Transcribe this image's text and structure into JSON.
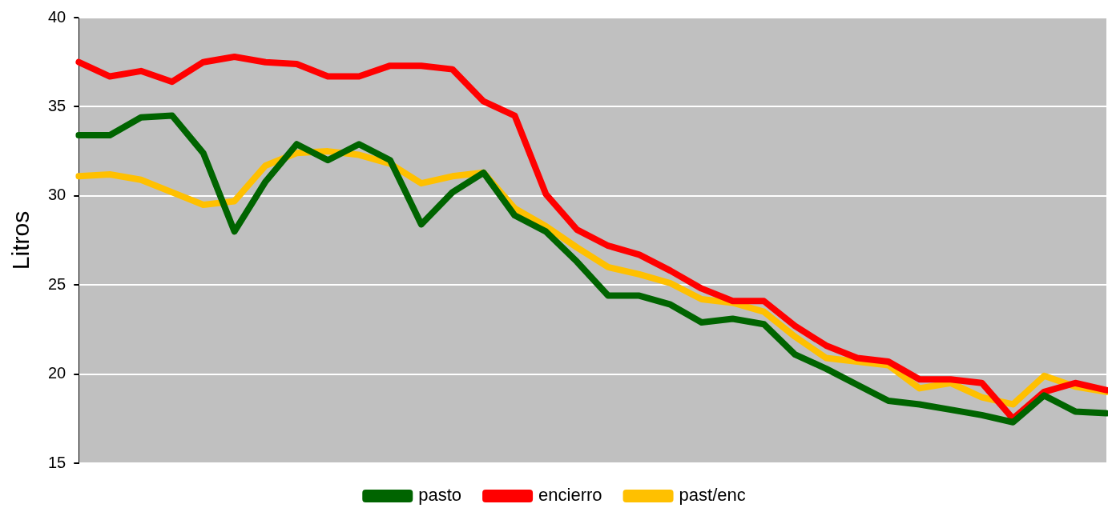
{
  "chart_data": {
    "type": "line",
    "ylabel": "Litros",
    "categories": [
      null,
      null,
      null,
      null,
      null,
      null,
      null,
      null,
      null,
      null,
      null,
      null,
      null,
      null,
      null,
      null,
      null,
      null,
      null,
      null,
      null,
      null,
      null,
      null,
      null,
      null,
      null,
      null,
      null,
      null,
      null,
      null,
      null,
      null
    ],
    "series": [
      {
        "name": "pasto",
        "color": "#006400",
        "values": [
          33.4,
          33.4,
          34.4,
          34.5,
          32.4,
          28.0,
          30.8,
          32.9,
          32.0,
          32.9,
          32.0,
          28.4,
          30.2,
          31.3,
          28.9,
          28.0,
          26.3,
          24.4,
          24.4,
          23.9,
          22.9,
          23.1,
          22.8,
          21.1,
          20.3,
          19.4,
          18.5,
          18.3,
          18.0,
          17.7,
          17.3,
          18.8,
          17.9,
          17.8
        ]
      },
      {
        "name": "encierro",
        "color": "#ff0000",
        "values": [
          37.5,
          36.7,
          37.0,
          36.4,
          37.5,
          37.8,
          37.5,
          37.4,
          36.7,
          36.7,
          37.3,
          37.3,
          37.1,
          35.3,
          34.5,
          30.1,
          28.1,
          27.2,
          26.7,
          25.8,
          24.8,
          24.1,
          24.1,
          22.7,
          21.6,
          20.9,
          20.7,
          19.7,
          19.7,
          19.5,
          17.5,
          19.0,
          19.5,
          19.1
        ]
      },
      {
        "name": "past/enc",
        "color": "#ffc000",
        "values": [
          31.1,
          31.2,
          30.9,
          30.2,
          29.5,
          29.7,
          31.7,
          32.4,
          32.5,
          32.3,
          31.8,
          30.7,
          31.1,
          31.3,
          29.3,
          28.3,
          27.1,
          26.0,
          25.6,
          25.1,
          24.2,
          24.0,
          23.5,
          22.1,
          20.9,
          20.7,
          20.5,
          19.2,
          19.5,
          18.7,
          18.3,
          19.9,
          19.3,
          19.0
        ]
      }
    ],
    "ylim": [
      15,
      40
    ],
    "yticks": [
      15,
      20,
      25,
      30,
      35,
      40
    ],
    "grid": "y",
    "legend": "bottom",
    "tick_labels": "y",
    "marker": "none",
    "line_style": "solid"
  }
}
